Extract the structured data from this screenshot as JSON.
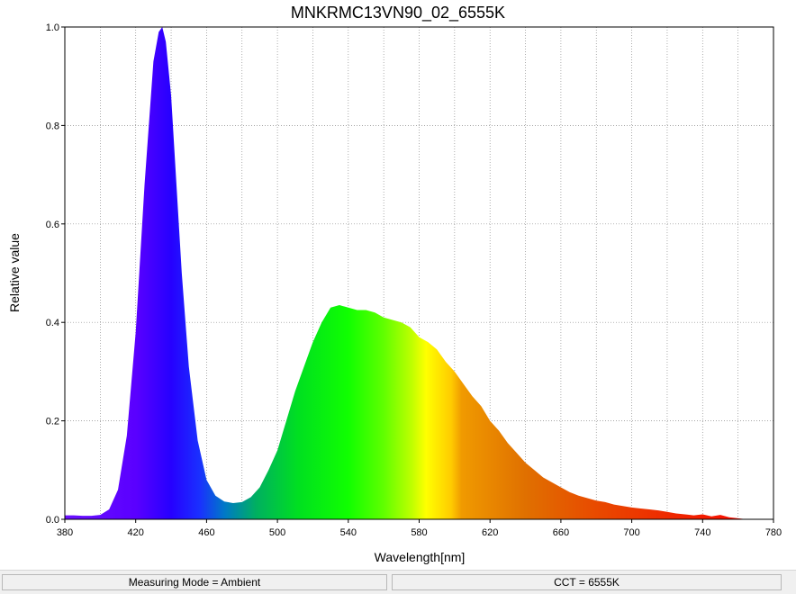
{
  "chart_data": {
    "type": "area",
    "title": "MNKRMC13VN90_02_6555K",
    "xlabel": "Wavelength[nm]",
    "ylabel": "Relative value",
    "xlim": [
      380,
      780
    ],
    "ylim": [
      0,
      1.0
    ],
    "x_ticks": [
      "380",
      "420",
      "460",
      "500",
      "540",
      "580",
      "620",
      "660",
      "700",
      "740",
      "780"
    ],
    "y_ticks": [
      "0.0",
      "0.2",
      "0.4",
      "0.6",
      "0.8",
      "1.0"
    ],
    "grid": true,
    "fill": "visible-spectrum gradient",
    "series": [
      {
        "x": [
          380,
          385,
          390,
          395,
          400,
          405,
          410,
          415,
          420,
          425,
          430,
          433,
          435,
          437,
          440,
          443,
          446,
          450,
          455,
          460,
          465,
          470,
          475,
          480,
          485,
          490,
          495,
          500,
          505,
          510,
          515,
          520,
          525,
          530,
          535,
          540,
          545,
          550,
          555,
          560,
          565,
          570,
          575,
          580,
          585,
          590,
          595,
          600,
          605,
          610,
          615,
          620,
          625,
          630,
          635,
          640,
          645,
          650,
          655,
          660,
          665,
          670,
          675,
          680,
          685,
          690,
          695,
          700,
          705,
          710,
          715,
          720,
          725,
          730,
          735,
          740,
          745,
          750,
          755,
          760,
          765
        ],
        "y": [
          0.008,
          0.008,
          0.007,
          0.007,
          0.009,
          0.02,
          0.06,
          0.17,
          0.38,
          0.68,
          0.93,
          0.99,
          1.0,
          0.97,
          0.86,
          0.68,
          0.5,
          0.31,
          0.16,
          0.08,
          0.048,
          0.036,
          0.033,
          0.035,
          0.045,
          0.065,
          0.1,
          0.14,
          0.2,
          0.26,
          0.31,
          0.36,
          0.4,
          0.43,
          0.435,
          0.43,
          0.425,
          0.425,
          0.42,
          0.41,
          0.405,
          0.4,
          0.39,
          0.37,
          0.36,
          0.345,
          0.32,
          0.3,
          0.275,
          0.25,
          0.23,
          0.2,
          0.18,
          0.155,
          0.135,
          0.115,
          0.1,
          0.085,
          0.075,
          0.065,
          0.055,
          0.048,
          0.043,
          0.038,
          0.035,
          0.03,
          0.027,
          0.024,
          0.022,
          0.02,
          0.018,
          0.015,
          0.012,
          0.01,
          0.008,
          0.01,
          0.006,
          0.009,
          0.004,
          0.002,
          0.0
        ]
      }
    ]
  },
  "status_bar": {
    "measuring_mode": "Measuring Mode = Ambient",
    "cct": "CCT = 6555K"
  }
}
